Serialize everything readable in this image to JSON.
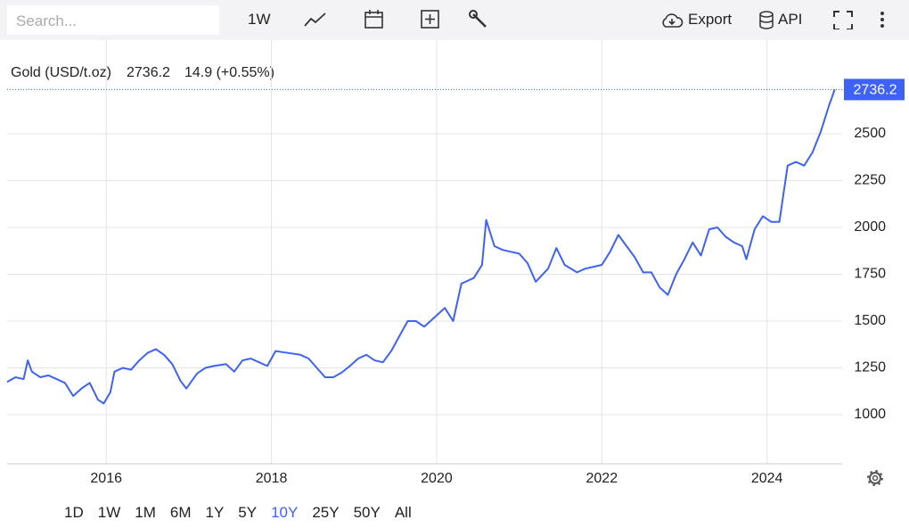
{
  "toolbar": {
    "search_placeholder": "Search...",
    "interval": "1W",
    "export": "Export",
    "api": "API"
  },
  "ranges": {
    "items": [
      "1D",
      "1W",
      "1M",
      "6M",
      "1Y",
      "5Y",
      "10Y",
      "25Y",
      "50Y",
      "All"
    ],
    "selected": "10Y"
  },
  "chart_data": {
    "type": "line",
    "series": [
      {
        "name": "Gold (USD/t.oz)",
        "color": "#3d62f5",
        "values": [
          1175,
          1200,
          1190,
          1290,
          1230,
          1200,
          1210,
          1190,
          1170,
          1100,
          1140,
          1170,
          1080,
          1060,
          1120,
          1230,
          1250,
          1240,
          1290,
          1330,
          1350,
          1320,
          1270,
          1180,
          1140,
          1220,
          1250,
          1260,
          1270,
          1230,
          1290,
          1300,
          1280,
          1260,
          1340,
          1330,
          1320,
          1300,
          1250,
          1200,
          1200,
          1225,
          1260,
          1300,
          1320,
          1290,
          1280,
          1340,
          1420,
          1500,
          1500,
          1470,
          1510,
          1570,
          1500,
          1700,
          1730,
          1800,
          2040,
          1900,
          1880,
          1870,
          1860,
          1810,
          1710,
          1780,
          1890,
          1800,
          1760,
          1780,
          1790,
          1800,
          1870,
          1960,
          1900,
          1840,
          1760,
          1760,
          1680,
          1640,
          1750,
          1830,
          1920,
          1850,
          1990,
          2000,
          1950,
          1920,
          1900,
          1830,
          1990,
          2060,
          2030,
          2030,
          2330,
          2350,
          2330,
          2400,
          2510,
          2650,
          2736.2
        ]
      }
    ],
    "x": [
      2014.8,
      2014.9,
      2015.0,
      2015.05,
      2015.1,
      2015.2,
      2015.3,
      2015.4,
      2015.5,
      2015.6,
      2015.7,
      2015.8,
      2015.9,
      2015.97,
      2016.05,
      2016.1,
      2016.2,
      2016.3,
      2016.4,
      2016.5,
      2016.6,
      2016.7,
      2016.8,
      2016.9,
      2016.97,
      2017.1,
      2017.2,
      2017.3,
      2017.45,
      2017.55,
      2017.65,
      2017.75,
      2017.85,
      2017.95,
      2018.05,
      2018.2,
      2018.35,
      2018.45,
      2018.55,
      2018.65,
      2018.75,
      2018.85,
      2018.95,
      2019.05,
      2019.15,
      2019.25,
      2019.35,
      2019.45,
      2019.55,
      2019.65,
      2019.75,
      2019.85,
      2019.95,
      2020.1,
      2020.2,
      2020.3,
      2020.45,
      2020.55,
      2020.6,
      2020.7,
      2020.8,
      2020.9,
      2021.0,
      2021.1,
      2021.2,
      2021.35,
      2021.45,
      2021.55,
      2021.7,
      2021.8,
      2021.9,
      2022.0,
      2022.1,
      2022.2,
      2022.3,
      2022.4,
      2022.5,
      2022.6,
      2022.7,
      2022.8,
      2022.9,
      2023.0,
      2023.1,
      2023.2,
      2023.3,
      2023.4,
      2023.5,
      2023.6,
      2023.7,
      2023.75,
      2023.85,
      2023.95,
      2024.05,
      2024.15,
      2024.25,
      2024.35,
      2024.45,
      2024.55,
      2024.65,
      2024.75,
      2024.82
    ],
    "xlim": [
      2014.8,
      2024.91
    ],
    "xticks": [
      2016,
      2018,
      2020,
      2022,
      2024
    ],
    "ylim": [
      738,
      3000
    ],
    "yticks": [
      1000,
      1250,
      1500,
      1750,
      2000,
      2250,
      2500
    ],
    "grid": true,
    "last": {
      "value": 2736.2,
      "change": "14.9 (+0.55%)",
      "change_color": "#5cc23a"
    }
  }
}
